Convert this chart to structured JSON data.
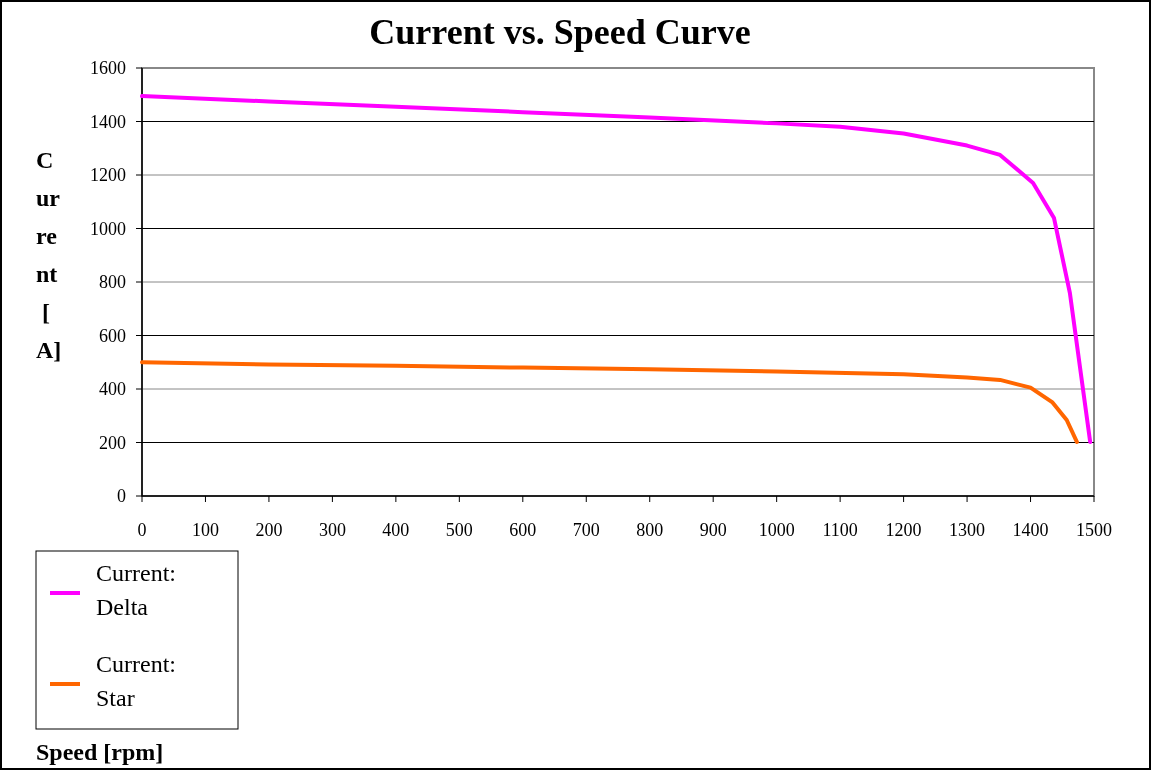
{
  "chart_data": {
    "type": "line",
    "title": "Current vs. Speed Curve",
    "annotations": [
      "Speed [rpm]"
    ],
    "ylabel": "Current [A]",
    "xlim": [
      0,
      1500
    ],
    "xticks": [
      0,
      100,
      200,
      300,
      400,
      500,
      600,
      700,
      800,
      900,
      1000,
      1100,
      1200,
      1300,
      1400,
      1500
    ],
    "ylim": [
      0,
      1600
    ],
    "yticks": [
      0,
      200,
      400,
      600,
      800,
      1000,
      1200,
      1400,
      1600
    ],
    "grid": "y",
    "legend": "bottom left",
    "line_style": "solid",
    "series": [
      {
        "name": "Current: Delta",
        "color": "#ff00ff",
        "x": [
          0,
          200,
          400,
          600,
          800,
          1000,
          1100,
          1200,
          1300,
          1352,
          1404,
          1437,
          1462,
          1494
        ],
        "values": [
          1495,
          1475,
          1455,
          1435,
          1415,
          1393,
          1380,
          1355,
          1310,
          1275,
          1170,
          1039,
          759,
          202
        ]
      },
      {
        "name": "Current: Star",
        "color": "#ff6600",
        "x": [
          0,
          200,
          400,
          600,
          800,
          1000,
          1200,
          1300,
          1352,
          1400,
          1434,
          1457,
          1473
        ],
        "values": [
          500,
          492,
          487,
          480,
          474,
          465,
          455,
          443,
          434,
          405,
          351,
          284,
          202
        ]
      }
    ]
  }
}
